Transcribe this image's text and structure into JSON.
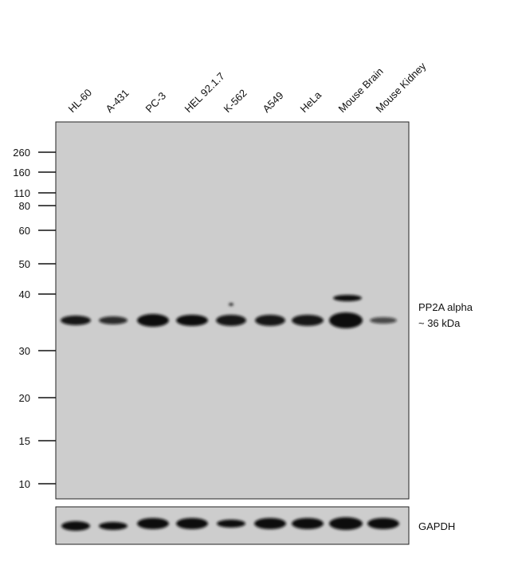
{
  "lanes": [
    "HL-60",
    "A-431",
    "PC-3",
    "HEL 92.1.7",
    "K-562",
    "A549",
    "HeLa",
    "Mouse Brain",
    "Mouse Kidney"
  ],
  "markers": [
    260,
    160,
    110,
    80,
    60,
    50,
    40,
    30,
    20,
    15,
    10
  ],
  "target": {
    "name": "PP2A alpha",
    "size": "~ 36 kDa"
  },
  "loading_control": "GAPDH"
}
